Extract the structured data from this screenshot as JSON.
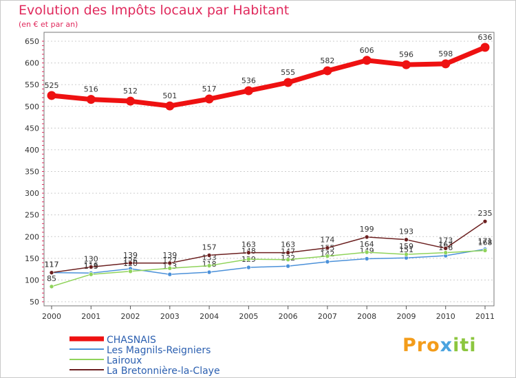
{
  "title": "Evolution des Impôts locaux par Habitant",
  "subtitle": "(en € et par an)",
  "logo": {
    "p1": "Pro",
    "p2": "x",
    "p3": "iti"
  },
  "chart_data": {
    "type": "line",
    "title": "Evolution des Impôts locaux par Habitant",
    "subtitle": "(en € et par an)",
    "xlabel": "",
    "ylabel": "",
    "ylim": [
      50,
      650
    ],
    "yticks": [
      50,
      100,
      150,
      200,
      250,
      300,
      350,
      400,
      450,
      500,
      550,
      600,
      650
    ],
    "x": [
      "2000",
      "2001",
      "2002",
      "2003",
      "2004",
      "2005",
      "2006",
      "2007",
      "2008",
      "2009",
      "2010",
      "2011"
    ],
    "grid": "horizontal",
    "legend_position": "bottom-left",
    "series": [
      {
        "name": "CHASNAIS",
        "color": "#ee1111",
        "values": [
          525,
          516,
          512,
          501,
          517,
          536,
          555,
          582,
          606,
          596,
          598,
          636
        ],
        "labels": [
          "525",
          "516",
          "512",
          "501",
          "517",
          "536",
          "555",
          "582",
          "606",
          "596",
          "598",
          "636"
        ]
      },
      {
        "name": "Les Magnils-Reigniers",
        "color": "#4a90d9",
        "values": [
          117,
          116,
          126,
          113,
          118,
          129,
          132,
          142,
          149,
          151,
          156,
          171
        ],
        "labels": [
          "117",
          "116",
          "126",
          "113",
          "118",
          "129",
          "132",
          "142",
          "149",
          "151",
          "156",
          "171"
        ]
      },
      {
        "name": "Lairoux",
        "color": "#8fd35a",
        "values": [
          85,
          113,
          120,
          127,
          133,
          148,
          147,
          155,
          164,
          159,
          163,
          168
        ],
        "labels": [
          "85",
          "113",
          "120",
          "127",
          "133",
          "148",
          "147",
          "155",
          "164",
          "159",
          "163",
          "168"
        ]
      },
      {
        "name": "La Bretonnière-la-Claye",
        "color": "#6b1f1f",
        "values": [
          117,
          130,
          139,
          139,
          157,
          163,
          163,
          174,
          199,
          193,
          173,
          235
        ],
        "labels": [
          "117",
          "130",
          "139",
          "139",
          "157",
          "163",
          "163",
          "174",
          "199",
          "193",
          "173",
          "235"
        ]
      }
    ]
  }
}
